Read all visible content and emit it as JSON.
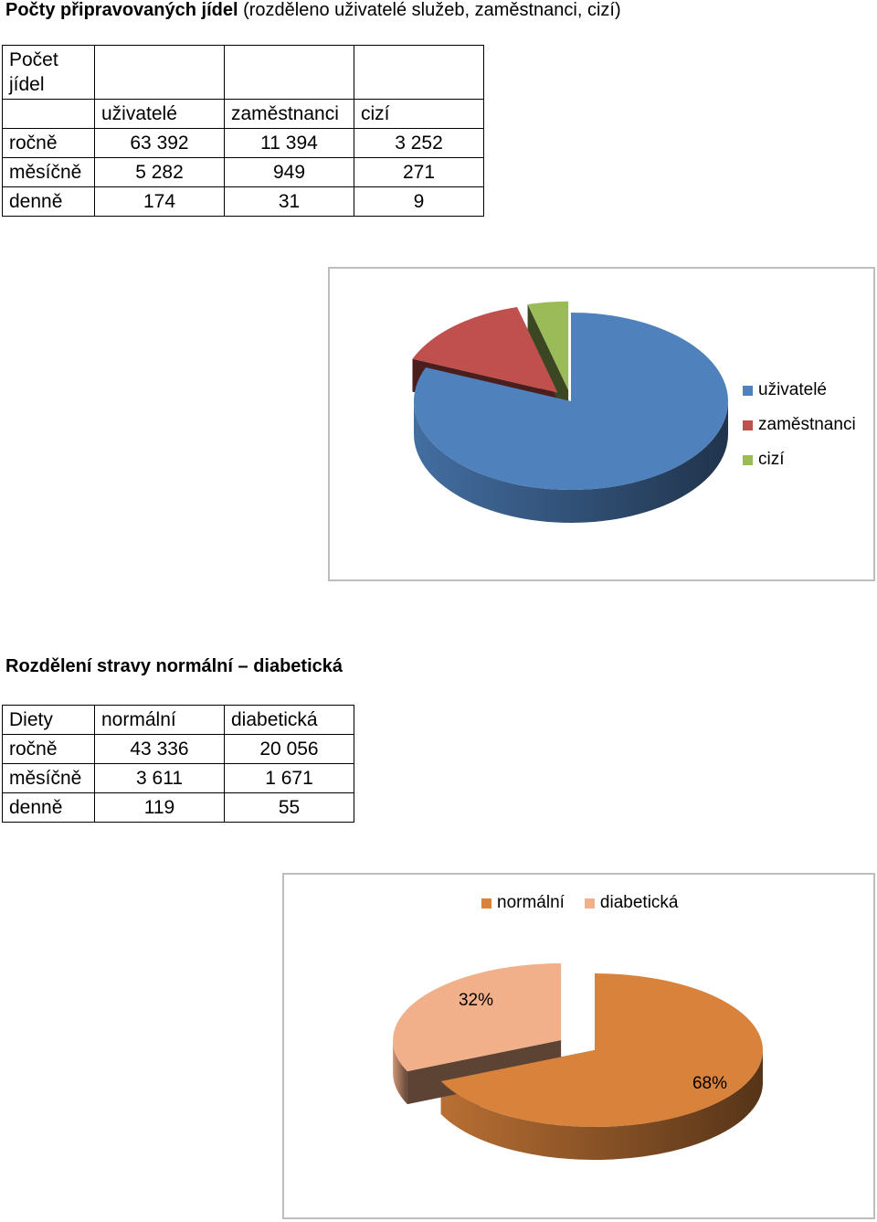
{
  "section1": {
    "title_bold": "Počty připravovaných jídel",
    "title_rest": " (rozděleno uživatelé služeb, zaměstnanci, cizí)",
    "table": {
      "corner": "Počet jídel",
      "headers": [
        "uživatelé",
        "zaměstnanci",
        "cizí"
      ],
      "rows": [
        {
          "label": "ročně",
          "values": [
            "63 392",
            "11 394",
            "3 252"
          ]
        },
        {
          "label": "měsíčně",
          "values": [
            "5 282",
            "949",
            "271"
          ]
        },
        {
          "label": "denně",
          "values": [
            "174",
            "31",
            "9"
          ]
        }
      ]
    }
  },
  "section2": {
    "title": "Rozdělení stravy normální – diabetická",
    "table": {
      "headers": [
        "Diety",
        "normální",
        "diabetická"
      ],
      "rows": [
        {
          "label": "ročně",
          "values": [
            "43 336",
            "20 056"
          ]
        },
        {
          "label": "měsíčně",
          "values": [
            "3 611",
            "1 671"
          ]
        },
        {
          "label": "denně",
          "values": [
            "119",
            "55"
          ]
        }
      ]
    }
  },
  "chart_data": [
    {
      "type": "pie",
      "style": "3d-exploded",
      "categories": [
        "uživatelé",
        "zaměstnanci",
        "cizí"
      ],
      "values": [
        63392,
        11394,
        3252
      ],
      "colors": [
        "#4F81BD",
        "#C0504D",
        "#9BBB59"
      ],
      "legend": "right",
      "data_labels": []
    },
    {
      "type": "pie",
      "style": "3d-exploded",
      "categories": [
        "normální",
        "diabetická"
      ],
      "values": [
        43336,
        20056
      ],
      "colors": [
        "#D8823C",
        "#F2B08A"
      ],
      "legend": "top",
      "data_labels": [
        "68%",
        "32%"
      ]
    }
  ]
}
